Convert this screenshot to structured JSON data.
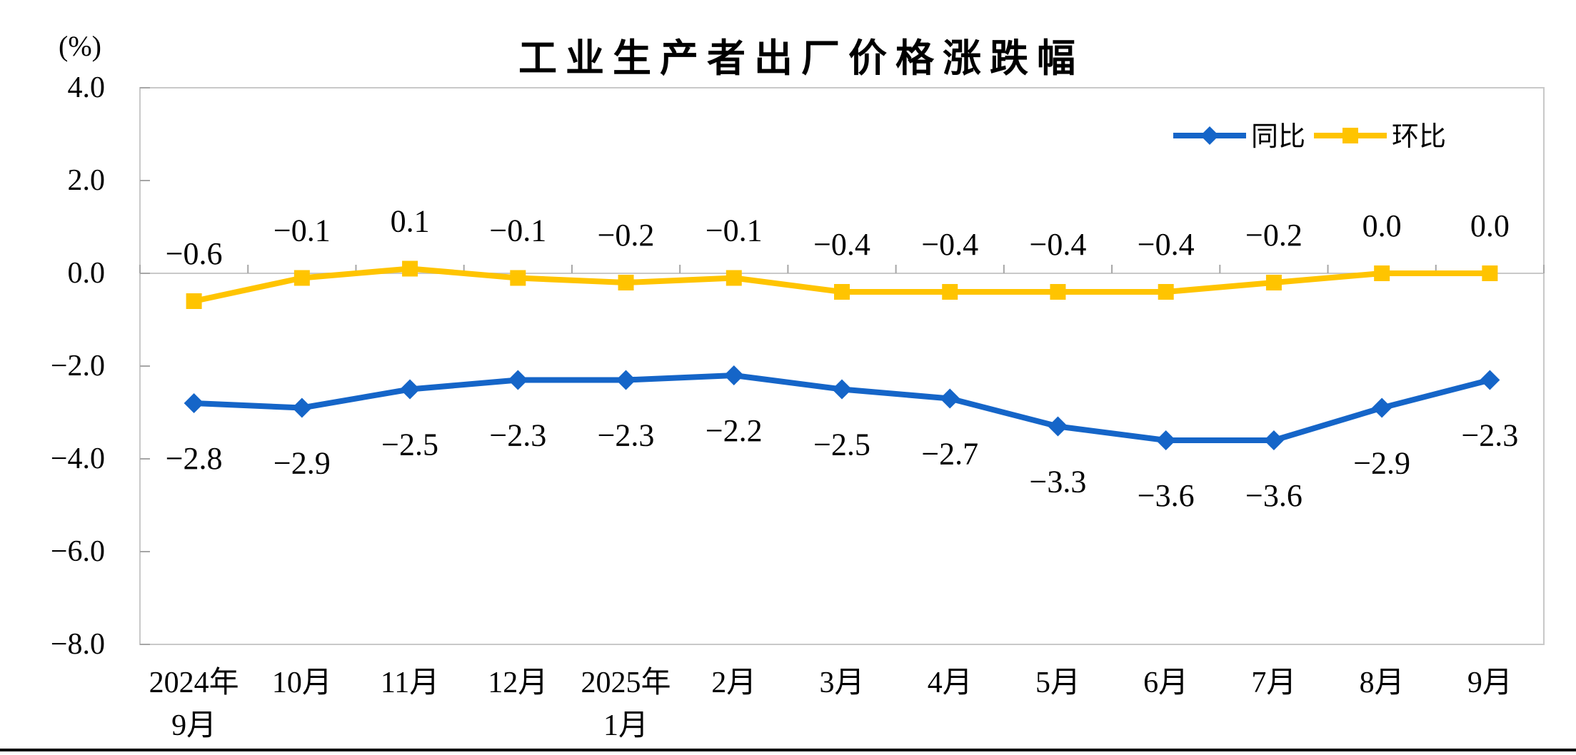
{
  "header": {
    "title": "工业生产者出厂价格涨跌幅",
    "y_axis_unit": "(%)"
  },
  "legend": {
    "items": [
      {
        "label": "同比",
        "marker": "diamond-icon"
      },
      {
        "label": "环比",
        "marker": "square-icon"
      }
    ]
  },
  "colors": {
    "yoy_blue": "#1565C8",
    "mom_gold": "#FFC400",
    "axis_gray": "#C9C9C9",
    "tick_gray": "#A6A6A6",
    "text_black": "#000000",
    "divider_black": "#000000"
  },
  "chart_data": {
    "type": "line",
    "title": "工业生产者出厂价格涨跌幅",
    "ylabel": "(%)",
    "xlabel": "",
    "ylim": [
      -8.0,
      4.0
    ],
    "ytick_step": 2.0,
    "yticks": [
      4.0,
      2.0,
      0.0,
      -2.0,
      -4.0,
      -6.0,
      -8.0
    ],
    "grid": false,
    "legend_position": "top-right",
    "categories": [
      "2024年|9月",
      "10月",
      "11月",
      "12月",
      "2025年|1月",
      "2月",
      "3月",
      "4月",
      "5月",
      "6月",
      "7月",
      "8月",
      "9月"
    ],
    "series": [
      {
        "name": "同比",
        "key": "yoy",
        "color": "#1565C8",
        "marker": "diamond",
        "label_position": "below",
        "values": [
          -2.8,
          -2.9,
          -2.5,
          -2.3,
          -2.3,
          -2.2,
          -2.5,
          -2.7,
          -3.3,
          -3.6,
          -3.6,
          -2.9,
          -2.3
        ]
      },
      {
        "name": "环比",
        "key": "mom",
        "color": "#FFC400",
        "marker": "square",
        "label_position": "above",
        "values": [
          -0.6,
          -0.1,
          0.1,
          -0.1,
          -0.2,
          -0.1,
          -0.4,
          -0.4,
          -0.4,
          -0.4,
          -0.2,
          0.0,
          0.0
        ]
      }
    ]
  }
}
